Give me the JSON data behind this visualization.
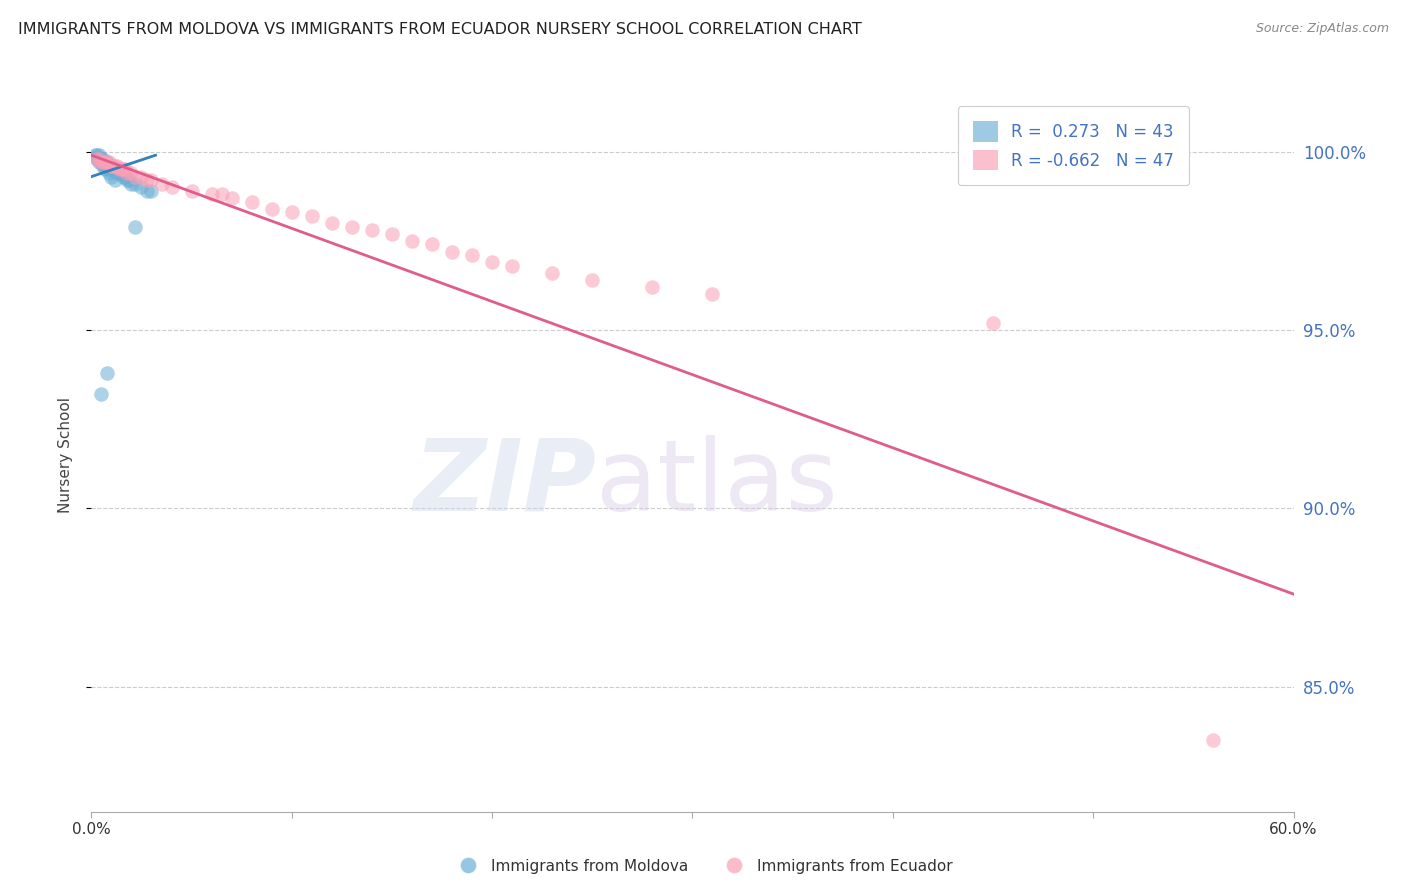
{
  "title": "IMMIGRANTS FROM MOLDOVA VS IMMIGRANTS FROM ECUADOR NURSERY SCHOOL CORRELATION CHART",
  "source": "Source: ZipAtlas.com",
  "ylabel": "Nursery School",
  "ytick_labels": [
    "100.0%",
    "95.0%",
    "90.0%",
    "85.0%"
  ],
  "ytick_values": [
    1.0,
    0.95,
    0.9,
    0.85
  ],
  "xlim": [
    0.0,
    0.6
  ],
  "ylim": [
    0.815,
    1.015
  ],
  "moldova_color": "#6baed6",
  "ecuador_color": "#fa9fb5",
  "moldova_line_color": "#3182bd",
  "ecuador_line_color": "#e05c8a",
  "moldova_scatter_x": [
    0.002,
    0.003,
    0.004,
    0.004,
    0.005,
    0.005,
    0.006,
    0.006,
    0.007,
    0.007,
    0.008,
    0.008,
    0.009,
    0.009,
    0.01,
    0.01,
    0.011,
    0.012,
    0.013,
    0.014,
    0.015,
    0.016,
    0.017,
    0.018,
    0.019,
    0.02,
    0.022,
    0.025,
    0.028,
    0.03,
    0.003,
    0.004,
    0.005,
    0.006,
    0.007,
    0.007,
    0.008,
    0.009,
    0.01,
    0.012,
    0.005,
    0.022,
    0.008
  ],
  "moldova_scatter_y": [
    0.999,
    0.999,
    0.999,
    0.998,
    0.998,
    0.998,
    0.998,
    0.997,
    0.997,
    0.997,
    0.997,
    0.996,
    0.996,
    0.996,
    0.996,
    0.995,
    0.995,
    0.995,
    0.994,
    0.994,
    0.994,
    0.993,
    0.993,
    0.992,
    0.992,
    0.991,
    0.991,
    0.99,
    0.989,
    0.989,
    0.998,
    0.997,
    0.997,
    0.996,
    0.996,
    0.995,
    0.995,
    0.994,
    0.993,
    0.992,
    0.932,
    0.979,
    0.938
  ],
  "moldova_line_x": [
    0.0,
    0.032
  ],
  "moldova_line_y": [
    0.993,
    0.999
  ],
  "ecuador_scatter_x": [
    0.003,
    0.004,
    0.005,
    0.006,
    0.007,
    0.008,
    0.009,
    0.01,
    0.011,
    0.012,
    0.013,
    0.014,
    0.015,
    0.016,
    0.017,
    0.018,
    0.02,
    0.022,
    0.025,
    0.028,
    0.03,
    0.035,
    0.04,
    0.05,
    0.06,
    0.065,
    0.07,
    0.08,
    0.09,
    0.1,
    0.11,
    0.12,
    0.13,
    0.14,
    0.15,
    0.16,
    0.17,
    0.18,
    0.19,
    0.2,
    0.21,
    0.23,
    0.25,
    0.28,
    0.31,
    0.45,
    0.56
  ],
  "ecuador_scatter_y": [
    0.998,
    0.998,
    0.997,
    0.997,
    0.997,
    0.997,
    0.997,
    0.996,
    0.996,
    0.996,
    0.996,
    0.995,
    0.995,
    0.995,
    0.995,
    0.994,
    0.994,
    0.993,
    0.993,
    0.992,
    0.992,
    0.991,
    0.99,
    0.989,
    0.988,
    0.988,
    0.987,
    0.986,
    0.984,
    0.983,
    0.982,
    0.98,
    0.979,
    0.978,
    0.977,
    0.975,
    0.974,
    0.972,
    0.971,
    0.969,
    0.968,
    0.966,
    0.964,
    0.962,
    0.96,
    0.952,
    0.835
  ],
  "ecuador_line_x": [
    0.0,
    0.6
  ],
  "ecuador_line_y": [
    0.999,
    0.876
  ],
  "legend_label1": "R =  0.273   N = 43",
  "legend_label2": "R = -0.662   N = 47",
  "bottom_legend1": "Immigrants from Moldova",
  "bottom_legend2": "Immigrants from Ecuador"
}
